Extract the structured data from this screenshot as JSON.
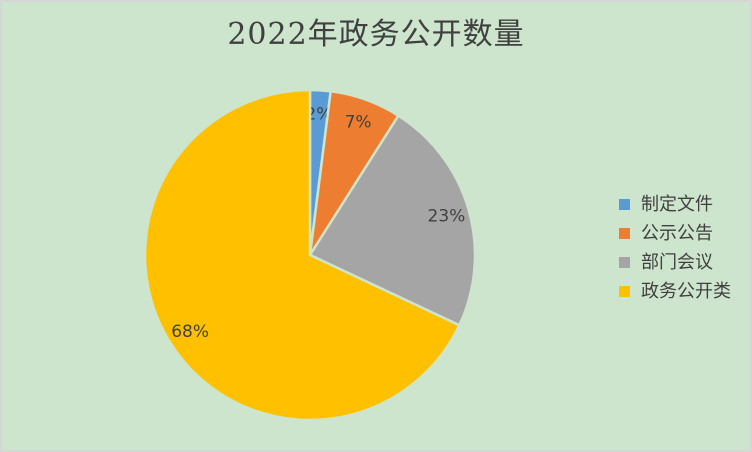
{
  "frame": {
    "background_color": "#CDE5CC",
    "border_color": "#D6D6D6"
  },
  "chart_data": {
    "type": "pie",
    "title": "2022年政务公开数量",
    "start_angle_deg": 0,
    "direction": "clockwise",
    "text_color": "#404040",
    "separator_color": "#CDE5CC",
    "legend_position": "right",
    "slices": [
      {
        "name": "制定文件",
        "value": 2,
        "percent_label": "2%",
        "color": "#5B9BD5"
      },
      {
        "name": "公示公告",
        "value": 7,
        "percent_label": "7%",
        "color": "#ED7D31"
      },
      {
        "name": "部门会议",
        "value": 23,
        "percent_label": "23%",
        "color": "#A5A5A5"
      },
      {
        "name": "政务公开类",
        "value": 68,
        "percent_label": "68%",
        "color": "#FFC000"
      }
    ],
    "legend": {
      "items": [
        {
          "label": "制定文件",
          "color": "#5B9BD5"
        },
        {
          "label": "公示公告",
          "color": "#ED7D31"
        },
        {
          "label": "部门会议",
          "color": "#A5A5A5"
        },
        {
          "label": "政务公开类",
          "color": "#FFC000"
        }
      ]
    }
  }
}
